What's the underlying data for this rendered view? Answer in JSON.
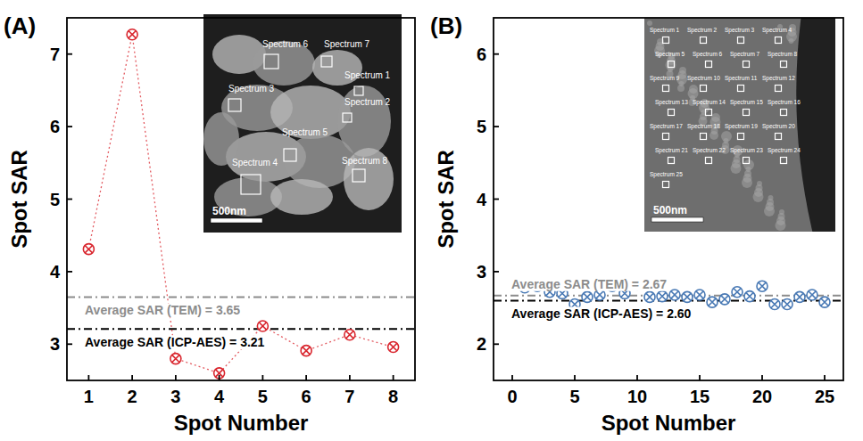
{
  "chart_data": [
    {
      "type": "scatter",
      "title": "(A)",
      "x_label": "Spot Number",
      "y_label": "Spot SAR",
      "x": [
        1,
        2,
        3,
        4,
        5,
        6,
        7,
        8
      ],
      "series": [
        {
          "color": "#d9262e",
          "marker": "x",
          "line_style": "dotted",
          "values": [
            4.31,
            7.27,
            2.8,
            2.6,
            3.25,
            2.91,
            3.13,
            2.96
          ]
        }
      ],
      "xlim": [
        0.5,
        8.5
      ],
      "xticks": [
        1,
        2,
        3,
        4,
        5,
        6,
        7,
        8
      ],
      "ylim": [
        2.5,
        7.5
      ],
      "yticks": [
        3,
        4,
        5,
        6,
        7
      ],
      "grid": false,
      "annotations": [
        {
          "label": "Average SAR (TEM) = 3.65",
          "value": 3.65,
          "color": "#8c8c8c",
          "line_style": "dashdot"
        },
        {
          "label": "Average SAR (ICP-AES) = 3.21",
          "value": 3.21,
          "color": "#000000",
          "line_style": "dashdot"
        }
      ],
      "inset": {
        "labels": [
          "Spectrum 1",
          "Spectrum 2",
          "Spectrum 3",
          "Spectrum 4",
          "Spectrum 5",
          "Spectrum 6",
          "Spectrum 7",
          "Spectrum 8"
        ],
        "scale_bar": "500nm"
      }
    },
    {
      "type": "scatter",
      "title": "(B)",
      "x_label": "Spot Number",
      "y_label": "Spot SAR",
      "x": [
        1,
        2,
        3,
        4,
        5,
        6,
        7,
        8,
        9,
        10,
        11,
        12,
        13,
        14,
        15,
        16,
        17,
        18,
        19,
        20,
        21,
        22,
        23,
        24,
        25
      ],
      "series": [
        {
          "color": "#4a7ab5",
          "marker": "x",
          "line_style": "none",
          "values": [
            2.78,
            2.8,
            2.72,
            2.7,
            2.55,
            2.65,
            2.68,
            2.8,
            2.7,
            2.82,
            2.65,
            2.66,
            2.68,
            2.65,
            2.68,
            2.58,
            2.62,
            2.72,
            2.66,
            2.8,
            2.55,
            2.55,
            2.65,
            2.68,
            2.58
          ]
        }
      ],
      "xlim": [
        -1.5,
        26.5
      ],
      "xticks": [
        0,
        5,
        10,
        15,
        20,
        25
      ],
      "ylim": [
        1.5,
        6.5
      ],
      "yticks": [
        2,
        3,
        4,
        5,
        6
      ],
      "grid": false,
      "annotations": [
        {
          "label": "Average SAR (TEM) = 2.67",
          "value": 2.67,
          "color": "#8c8c8c",
          "line_style": "dashdot"
        },
        {
          "label": "Average SAR (ICP-AES) = 2.60",
          "value": 2.6,
          "color": "#000000",
          "line_style": "dashdot"
        }
      ],
      "inset": {
        "labels": [
          "Spectrum 1",
          "Spectrum 2",
          "Spectrum 3",
          "Spectrum 4",
          "Spectrum 5",
          "Spectrum 6",
          "Spectrum 7",
          "Spectrum 8",
          "Spectrum 9",
          "Spectrum 10",
          "Spectrum 11",
          "Spectrum 12",
          "Spectrum 13",
          "Spectrum 14",
          "Spectrum 15",
          "Spectrum 16",
          "Spectrum 17",
          "Spectrum 18",
          "Spectrum 19",
          "Spectrum 20",
          "Spectrum 21",
          "Spectrum 22",
          "Spectrum 23",
          "Spectrum 24",
          "Spectrum 25"
        ],
        "scale_bar": "500nm"
      }
    }
  ]
}
